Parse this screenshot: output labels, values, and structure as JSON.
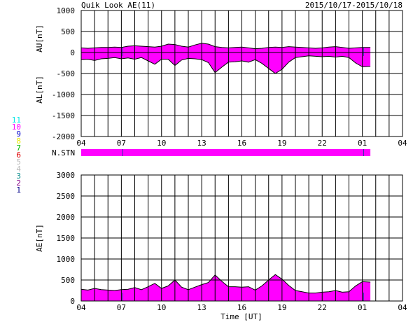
{
  "header": {
    "title": "Quik Look AE(11)",
    "date_range": "2015/10/17-2015/10/18"
  },
  "station_legend": {
    "items": [
      {
        "label": "11",
        "color": "#00e5e5"
      },
      {
        "label": "10",
        "color": "#ff00ff"
      },
      {
        "label": "9",
        "color": "#0000cc"
      },
      {
        "label": "8",
        "color": "#e8e800"
      },
      {
        "label": "7",
        "color": "#00bb00"
      },
      {
        "label": "6",
        "color": "#dd0000"
      },
      {
        "label": "5",
        "color": "#bbbbbb"
      },
      {
        "label": "4",
        "color": "#bbbbbb"
      },
      {
        "label": "3",
        "color": "#008888"
      },
      {
        "label": "2",
        "color": "#880088"
      },
      {
        "label": "1",
        "color": "#000088"
      }
    ]
  },
  "chart_data": [
    {
      "type": "area",
      "panel": "AU/AL",
      "ylabel_top": "AU[nT]",
      "ylabel_bottom": "AL[nT]",
      "ylim": [
        -2000,
        1000
      ],
      "y_ticks": [
        "1000",
        "500",
        "0",
        "-500",
        "-1000",
        "-1500",
        "-2000"
      ],
      "x_ticks": [
        "04",
        "07",
        "10",
        "13",
        "16",
        "19",
        "22",
        "01",
        "04"
      ],
      "grid": true,
      "fill_color": "#ff00ff",
      "x_unit": "hours since 2015/10/17 04 UT",
      "xlim": [
        0,
        24
      ],
      "data_end": 21.6,
      "au": [
        [
          0,
          110
        ],
        [
          0.5,
          100
        ],
        [
          1,
          110
        ],
        [
          1.5,
          120
        ],
        [
          2,
          120
        ],
        [
          2.5,
          130
        ],
        [
          3,
          120
        ],
        [
          3.5,
          150
        ],
        [
          4,
          160
        ],
        [
          4.5,
          150
        ],
        [
          5,
          140
        ],
        [
          5.5,
          130
        ],
        [
          6,
          150
        ],
        [
          6.5,
          200
        ],
        [
          7,
          190
        ],
        [
          7.5,
          150
        ],
        [
          8,
          130
        ],
        [
          8.5,
          180
        ],
        [
          9,
          220
        ],
        [
          9.5,
          200
        ],
        [
          10,
          140
        ],
        [
          10.5,
          120
        ],
        [
          11,
          110
        ],
        [
          11.5,
          120
        ],
        [
          12,
          130
        ],
        [
          12.5,
          110
        ],
        [
          13,
          90
        ],
        [
          13.5,
          100
        ],
        [
          14,
          120
        ],
        [
          14.5,
          130
        ],
        [
          15,
          120
        ],
        [
          15.5,
          140
        ],
        [
          16,
          130
        ],
        [
          16.5,
          120
        ],
        [
          17,
          110
        ],
        [
          17.5,
          100
        ],
        [
          18,
          110
        ],
        [
          18.5,
          130
        ],
        [
          19,
          140
        ],
        [
          19.5,
          120
        ],
        [
          20,
          100
        ],
        [
          20.5,
          110
        ],
        [
          21,
          120
        ],
        [
          21.6,
          120
        ]
      ],
      "al": [
        [
          0,
          -170
        ],
        [
          0.5,
          -160
        ],
        [
          1,
          -190
        ],
        [
          1.5,
          -150
        ],
        [
          2,
          -140
        ],
        [
          2.5,
          -120
        ],
        [
          3,
          -150
        ],
        [
          3.5,
          -130
        ],
        [
          4,
          -160
        ],
        [
          4.5,
          -120
        ],
        [
          5,
          -200
        ],
        [
          5.5,
          -280
        ],
        [
          6,
          -160
        ],
        [
          6.5,
          -160
        ],
        [
          7,
          -310
        ],
        [
          7.5,
          -180
        ],
        [
          8,
          -140
        ],
        [
          8.5,
          -150
        ],
        [
          9,
          -170
        ],
        [
          9.5,
          -240
        ],
        [
          10,
          -480
        ],
        [
          10.5,
          -350
        ],
        [
          11,
          -230
        ],
        [
          11.5,
          -220
        ],
        [
          12,
          -200
        ],
        [
          12.5,
          -230
        ],
        [
          13,
          -170
        ],
        [
          13.5,
          -260
        ],
        [
          14,
          -380
        ],
        [
          14.5,
          -500
        ],
        [
          15,
          -400
        ],
        [
          15.5,
          -230
        ],
        [
          16,
          -120
        ],
        [
          16.5,
          -100
        ],
        [
          17,
          -80
        ],
        [
          17.5,
          -90
        ],
        [
          18,
          -100
        ],
        [
          18.5,
          -90
        ],
        [
          19,
          -110
        ],
        [
          19.5,
          -90
        ],
        [
          20,
          -120
        ],
        [
          20.5,
          -250
        ],
        [
          21,
          -340
        ],
        [
          21.6,
          -330
        ]
      ]
    },
    {
      "type": "area",
      "panel": "AE",
      "ylabel": "AE[nT]",
      "xlabel": "Time [UT]",
      "ylim": [
        0,
        3000
      ],
      "y_ticks": [
        "3000",
        "2500",
        "2000",
        "1500",
        "1000",
        "500",
        "0"
      ],
      "x_ticks": [
        "04",
        "07",
        "10",
        "13",
        "16",
        "19",
        "22",
        "01",
        "04"
      ],
      "grid": true,
      "fill_color": "#ff00ff",
      "x_unit": "hours since 2015/10/17 04 UT",
      "xlim": [
        0,
        24
      ],
      "data_end": 21.6,
      "ae": [
        [
          0,
          280
        ],
        [
          0.5,
          260
        ],
        [
          1,
          300
        ],
        [
          1.5,
          270
        ],
        [
          2,
          260
        ],
        [
          2.5,
          250
        ],
        [
          3,
          270
        ],
        [
          3.5,
          280
        ],
        [
          4,
          320
        ],
        [
          4.5,
          270
        ],
        [
          5,
          340
        ],
        [
          5.5,
          420
        ],
        [
          6,
          300
        ],
        [
          6.5,
          360
        ],
        [
          7,
          500
        ],
        [
          7.5,
          330
        ],
        [
          8,
          270
        ],
        [
          8.5,
          330
        ],
        [
          9,
          390
        ],
        [
          9.5,
          440
        ],
        [
          10,
          620
        ],
        [
          10.5,
          470
        ],
        [
          11,
          340
        ],
        [
          11.5,
          340
        ],
        [
          12,
          330
        ],
        [
          12.5,
          340
        ],
        [
          13,
          260
        ],
        [
          13.5,
          360
        ],
        [
          14,
          500
        ],
        [
          14.5,
          630
        ],
        [
          15,
          520
        ],
        [
          15.5,
          370
        ],
        [
          16,
          250
        ],
        [
          16.5,
          220
        ],
        [
          17,
          190
        ],
        [
          17.5,
          190
        ],
        [
          18,
          210
        ],
        [
          18.5,
          220
        ],
        [
          19,
          250
        ],
        [
          19.5,
          210
        ],
        [
          20,
          220
        ],
        [
          20.5,
          360
        ],
        [
          21,
          460
        ],
        [
          21.6,
          450
        ]
      ]
    },
    {
      "type": "bar",
      "panel": "N.STN",
      "ylabel": "N.STN",
      "fill_color": "#ff00ff",
      "xlim": [
        0,
        24
      ],
      "data_end": 21.6
    }
  ],
  "markers": [
    3.1,
    21.1
  ]
}
